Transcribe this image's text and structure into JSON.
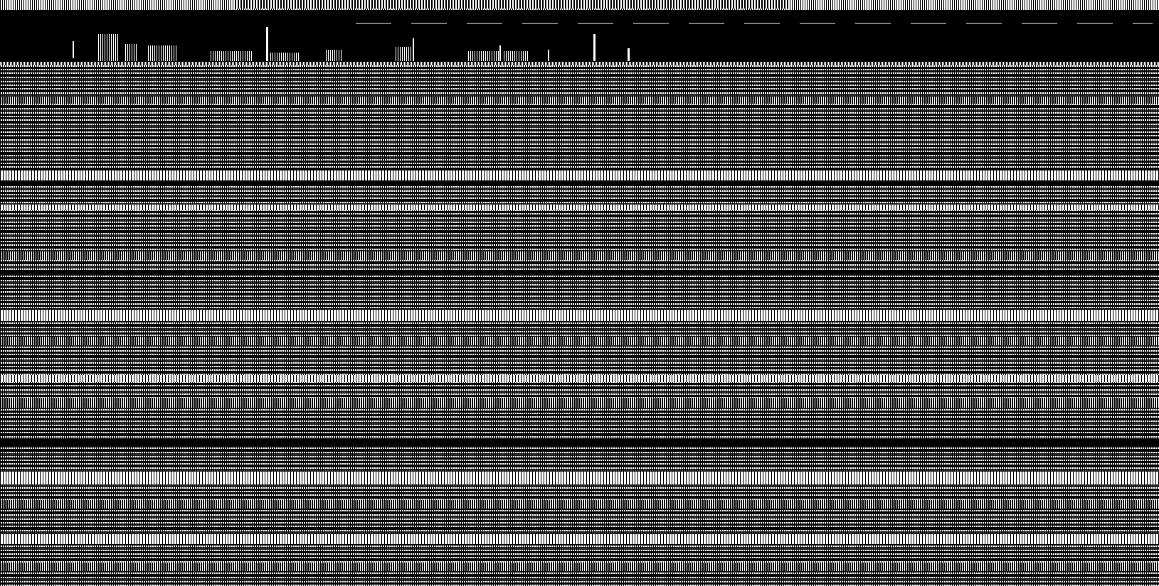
{
  "screen": {
    "note": ""
  }
}
